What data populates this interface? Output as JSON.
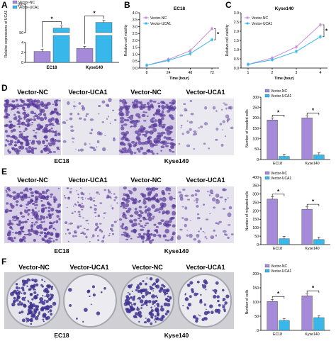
{
  "panels": {
    "A": {
      "letter": "A"
    },
    "B": {
      "letter": "B"
    },
    "C": {
      "letter": "C"
    },
    "D": {
      "letter": "D",
      "left_labels": [
        "Vector-NC",
        "Vector-UCA1"
      ],
      "right_labels": [
        "Vector-NC",
        "Vector-UCA1"
      ],
      "groups": [
        "EC18",
        "Kyse140"
      ]
    },
    "E": {
      "letter": "E",
      "left_labels": [
        "Vector-NC",
        "Vector-UCA1"
      ],
      "right_labels": [
        "Vector-NC",
        "Vector-UCA1"
      ],
      "groups": [
        "EC18",
        "Kyse140"
      ]
    },
    "F": {
      "letter": "F",
      "left_labels": [
        "Vector-NC",
        "Vector-UCA1"
      ],
      "right_labels": [
        "Vector-NC",
        "Vector-UCA1"
      ],
      "groups": [
        "EC18",
        "Kyse140"
      ]
    }
  },
  "colors": {
    "nc": "#a48ad8",
    "uca1": "#38b8ea",
    "nc_line": "#c88ed8",
    "stain": "#5a3a9a"
  },
  "chart_data": [
    {
      "id": "A",
      "type": "bar",
      "ylabel": "Relative expressions of UCA1",
      "categories": [
        "EC18",
        "Kyse140"
      ],
      "series": [
        {
          "name": "Vector-NC",
          "values": [
            2.2,
            2.8
          ]
        },
        {
          "name": "Vector-UCA1",
          "values": [
            58,
            68
          ]
        }
      ],
      "yticks": [
        "0",
        "2",
        "4",
        "50",
        "100"
      ],
      "annotations": [
        "*",
        "*"
      ]
    },
    {
      "id": "B",
      "type": "line",
      "title": "EC18",
      "xlabel": "Time (hour)",
      "ylabel": "Relative cell viability",
      "x": [
        "8",
        "24",
        "48",
        "72"
      ],
      "series": [
        {
          "name": "Vector-NC",
          "values": [
            0.2,
            0.62,
            1.25,
            2.85
          ]
        },
        {
          "name": "Vector-UCA1",
          "values": [
            0.2,
            0.55,
            1.05,
            2.05
          ]
        }
      ],
      "ylim": [
        0,
        4
      ],
      "yticks": [
        "0.0",
        "0.5",
        "1.0",
        "1.5",
        "2.0",
        "2.5",
        "3.0",
        "3.5",
        "4.0"
      ],
      "annotations": [
        "*"
      ]
    },
    {
      "id": "C",
      "type": "line",
      "title": "Kyse140",
      "xlabel": "Time (hour)",
      "ylabel": "Relative cell viability",
      "x": [
        "1",
        "2",
        "3",
        "4"
      ],
      "series": [
        {
          "name": "Vector-NC",
          "values": [
            0.2,
            0.55,
            1.15,
            2.35
          ]
        },
        {
          "name": "Vector-UCA1",
          "values": [
            0.2,
            0.45,
            0.9,
            1.7
          ]
        }
      ],
      "ylim": [
        0,
        3
      ],
      "yticks": [
        "0.0",
        "0.5",
        "1.0",
        "1.5",
        "2.0",
        "2.5",
        "3.0"
      ],
      "annotations": [
        "*"
      ]
    },
    {
      "id": "D",
      "type": "bar",
      "ylabel": "Number of invaded cells",
      "categories": [
        "EC18",
        "Kyse140"
      ],
      "series": [
        {
          "name": "Vector-NC",
          "values": [
            190,
            200
          ]
        },
        {
          "name": "Vector-UCA1",
          "values": [
            15,
            22
          ]
        }
      ],
      "ylim": [
        0,
        300
      ],
      "yticks": [
        "0",
        "50",
        "100",
        "150",
        "200",
        "250",
        "300"
      ],
      "annotations": [
        "*",
        "*"
      ]
    },
    {
      "id": "E",
      "type": "bar",
      "ylabel": "Number of migrated cells",
      "categories": [
        "EC18",
        "Kyse140"
      ],
      "series": [
        {
          "name": "Vector-NC",
          "values": [
            270,
            210
          ]
        },
        {
          "name": "Vector-UCA1",
          "values": [
            35,
            30
          ]
        }
      ],
      "ylim": [
        0,
        400
      ],
      "yticks": [
        "0",
        "50",
        "100",
        "150",
        "200",
        "250",
        "300",
        "350",
        "400"
      ],
      "annotations": [
        "*",
        "*"
      ]
    },
    {
      "id": "F",
      "type": "bar",
      "ylabel": "Number of cells",
      "categories": [
        "EC18",
        "Kyse140"
      ],
      "series": [
        {
          "name": "Vector-NC",
          "values": [
            102,
            122
          ]
        },
        {
          "name": "Vector-UCA1",
          "values": [
            35,
            45
          ]
        }
      ],
      "ylim": [
        0,
        200
      ],
      "yticks": [
        "0",
        "50",
        "100",
        "150",
        "200"
      ],
      "annotations": [
        "*",
        "*"
      ]
    }
  ]
}
